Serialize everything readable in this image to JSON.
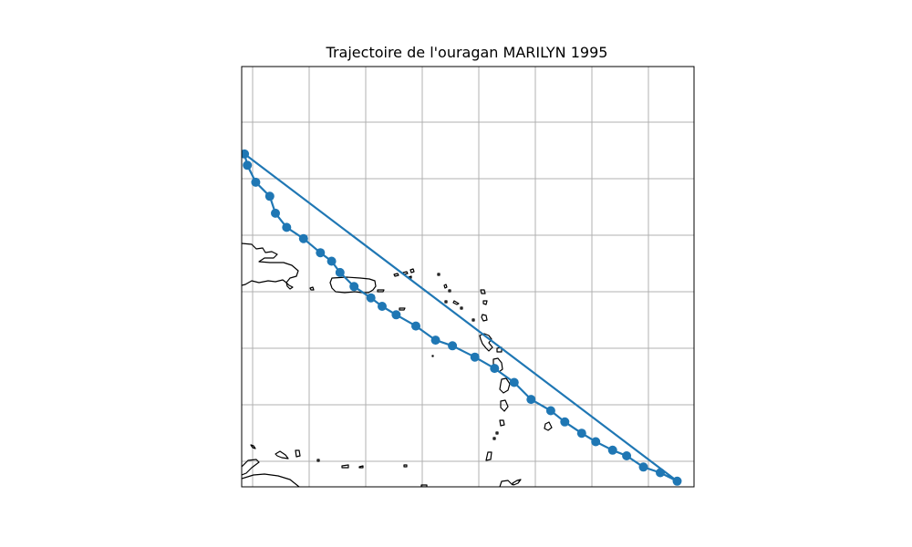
{
  "chart_data": {
    "type": "line",
    "title": "Trajectoire de l'ouragan MARILYN 1995",
    "xlabel": "",
    "ylabel": "",
    "grid": true,
    "map": "Caribbean coastline",
    "xlim": [
      -68.2,
      -52.1
    ],
    "ylim": [
      11.8,
      26.7
    ],
    "series": [
      {
        "marker": "circle",
        "color": "#1f77b4",
        "lon": [
          -52.7,
          -53.3,
          -53.9,
          -54.5,
          -55.0,
          -55.6,
          -56.1,
          -56.7,
          -57.2,
          -57.9,
          -58.5,
          -59.2,
          -59.9,
          -60.7,
          -61.3,
          -62.0,
          -62.7,
          -63.2,
          -63.6,
          -64.2,
          -64.7,
          -65.0,
          -65.4,
          -66.0,
          -66.6,
          -67.0,
          -67.2,
          -67.7,
          -68.0,
          -68.1
        ],
        "lat": [
          12.0,
          12.3,
          12.5,
          12.9,
          13.1,
          13.4,
          13.7,
          14.1,
          14.5,
          14.9,
          15.5,
          16.0,
          16.4,
          16.8,
          17.0,
          17.5,
          17.9,
          18.2,
          18.5,
          18.9,
          19.4,
          19.8,
          20.1,
          20.6,
          21.0,
          21.5,
          22.1,
          22.6,
          23.2,
          23.6
        ]
      }
    ]
  }
}
